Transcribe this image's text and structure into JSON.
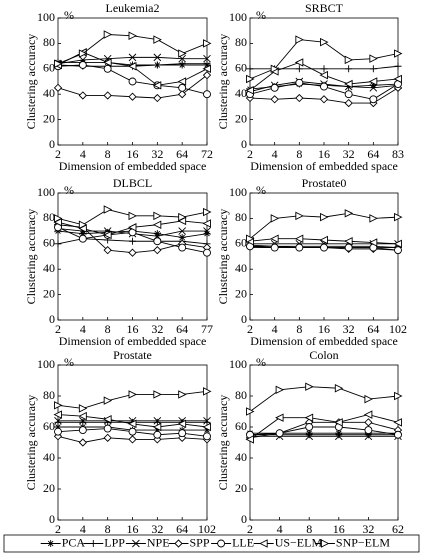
{
  "chart_data": [
    {
      "type": "line",
      "title": "Leukemia2",
      "y_unit": "%",
      "y_label": "Clustering accuracy",
      "x_label": "Dimension of embedded space",
      "categories": [
        2,
        4,
        8,
        16,
        32,
        64,
        72
      ],
      "ylim": [
        0,
        100
      ],
      "yticks": [
        0,
        20,
        40,
        60,
        80,
        100
      ],
      "series": [
        {
          "name": "PCA",
          "marker": "asterisk",
          "color": "#000",
          "values": [
            65,
            65,
            65,
            63,
            63,
            63,
            63
          ]
        },
        {
          "name": "LPP",
          "marker": "plus",
          "color": "#000",
          "values": [
            63,
            62,
            62,
            62,
            63,
            64,
            64
          ]
        },
        {
          "name": "NPE",
          "marker": "x",
          "color": "#000",
          "values": [
            64,
            67,
            68,
            69,
            69,
            68,
            68
          ]
        },
        {
          "name": "SPP",
          "marker": "diamond",
          "color": "#000",
          "values": [
            45,
            39,
            39,
            38,
            37,
            40,
            55
          ]
        },
        {
          "name": "LLE",
          "marker": "circle",
          "color": "#000",
          "values": [
            62,
            63,
            60,
            50,
            47,
            45,
            40
          ]
        },
        {
          "name": "US−ELM",
          "marker": "triangle-left",
          "color": "#000",
          "values": [
            63,
            73,
            65,
            62,
            47,
            50,
            60
          ]
        },
        {
          "name": "SNP−ELM",
          "marker": "triangle-right",
          "color": "#000",
          "values": [
            64,
            72,
            87,
            86,
            83,
            72,
            80
          ]
        }
      ]
    },
    {
      "type": "line",
      "title": "SRBCT",
      "y_unit": "%",
      "y_label": "Clustering accuracy",
      "x_label": "Dimension of embedded space",
      "categories": [
        2,
        4,
        8,
        16,
        32,
        64,
        83
      ],
      "ylim": [
        0,
        100
      ],
      "yticks": [
        0,
        20,
        40,
        60,
        80,
        100
      ],
      "series": [
        {
          "name": "PCA",
          "marker": "asterisk",
          "color": "#000",
          "values": [
            44,
            46,
            48,
            47,
            46,
            47,
            48
          ]
        },
        {
          "name": "LPP",
          "marker": "plus",
          "color": "#000",
          "values": [
            60,
            60,
            60,
            60,
            60,
            60,
            62
          ]
        },
        {
          "name": "NPE",
          "marker": "x",
          "color": "#000",
          "values": [
            42,
            47,
            50,
            48,
            46,
            45,
            47
          ]
        },
        {
          "name": "SPP",
          "marker": "diamond",
          "color": "#000",
          "values": [
            37,
            36,
            37,
            36,
            33,
            33,
            45
          ]
        },
        {
          "name": "LLE",
          "marker": "circle",
          "color": "#000",
          "values": [
            40,
            45,
            49,
            46,
            40,
            36,
            48
          ]
        },
        {
          "name": "US−ELM",
          "marker": "triangle-left",
          "color": "#000",
          "values": [
            43,
            58,
            65,
            55,
            48,
            50,
            52
          ]
        },
        {
          "name": "SNP−ELM",
          "marker": "triangle-right",
          "color": "#000",
          "values": [
            52,
            60,
            83,
            81,
            67,
            68,
            72
          ]
        }
      ]
    },
    {
      "type": "line",
      "title": "DLBCL",
      "y_unit": "%",
      "y_label": "Clustering accuracy",
      "x_label": "Dimension of embedded space",
      "categories": [
        2,
        4,
        8,
        16,
        32,
        64,
        77
      ],
      "ylim": [
        0,
        100
      ],
      "yticks": [
        0,
        20,
        40,
        60,
        80,
        100
      ],
      "series": [
        {
          "name": "PCA",
          "marker": "asterisk",
          "color": "#000",
          "values": [
            70,
            68,
            69,
            70,
            68,
            65,
            68
          ]
        },
        {
          "name": "LPP",
          "marker": "plus",
          "color": "#000",
          "values": [
            60,
            64,
            63,
            62,
            62,
            62,
            60
          ]
        },
        {
          "name": "NPE",
          "marker": "x",
          "color": "#000",
          "values": [
            72,
            70,
            70,
            68,
            66,
            70,
            70
          ]
        },
        {
          "name": "SPP",
          "marker": "diamond",
          "color": "#000",
          "values": [
            75,
            73,
            55,
            53,
            55,
            60,
            57
          ]
        },
        {
          "name": "LLE",
          "marker": "circle",
          "color": "#000",
          "values": [
            73,
            64,
            67,
            69,
            62,
            57,
            53
          ]
        },
        {
          "name": "US−ELM",
          "marker": "triangle-left",
          "color": "#000",
          "values": [
            77,
            72,
            67,
            73,
            75,
            78,
            76
          ]
        },
        {
          "name": "SNP−ELM",
          "marker": "triangle-right",
          "color": "#000",
          "values": [
            80,
            75,
            87,
            82,
            82,
            81,
            85
          ]
        }
      ]
    },
    {
      "type": "line",
      "title": "Prostate0",
      "y_unit": "%",
      "y_label": "Clustering accuracy",
      "x_label": "Dimension of embedded space",
      "categories": [
        2,
        4,
        8,
        16,
        32,
        64,
        102
      ],
      "ylim": [
        0,
        100
      ],
      "yticks": [
        0,
        20,
        40,
        60,
        80,
        100
      ],
      "series": [
        {
          "name": "PCA",
          "marker": "asterisk",
          "color": "#000",
          "values": [
            59,
            58,
            58,
            58,
            58,
            58,
            57
          ]
        },
        {
          "name": "LPP",
          "marker": "plus",
          "color": "#000",
          "values": [
            57,
            57,
            57,
            57,
            57,
            57,
            57
          ]
        },
        {
          "name": "NPE",
          "marker": "x",
          "color": "#000",
          "values": [
            60,
            60,
            60,
            60,
            60,
            60,
            60
          ]
        },
        {
          "name": "SPP",
          "marker": "diamond",
          "color": "#000",
          "values": [
            58,
            58,
            57,
            57,
            56,
            56,
            55
          ]
        },
        {
          "name": "LLE",
          "marker": "circle",
          "color": "#000",
          "values": [
            58,
            57,
            57,
            57,
            57,
            57,
            55
          ]
        },
        {
          "name": "US−ELM",
          "marker": "triangle-left",
          "color": "#000",
          "values": [
            62,
            64,
            64,
            63,
            62,
            61,
            60
          ]
        },
        {
          "name": "SNP−ELM",
          "marker": "triangle-right",
          "color": "#000",
          "values": [
            64,
            80,
            82,
            81,
            84,
            80,
            81
          ]
        }
      ]
    },
    {
      "type": "line",
      "title": "Prostate",
      "y_unit": "%",
      "y_label": "Clustering accuracy",
      "categories": [
        2,
        4,
        8,
        16,
        32,
        64,
        102
      ],
      "ylim": [
        0,
        100
      ],
      "yticks": [
        0,
        20,
        40,
        60,
        80,
        100
      ],
      "series": [
        {
          "name": "PCA",
          "marker": "asterisk",
          "color": "#000",
          "values": [
            60,
            60,
            60,
            58,
            58,
            58,
            58
          ]
        },
        {
          "name": "LPP",
          "marker": "plus",
          "color": "#000",
          "values": [
            63,
            63,
            63,
            63,
            63,
            63,
            63
          ]
        },
        {
          "name": "NPE",
          "marker": "x",
          "color": "#000",
          "values": [
            64,
            64,
            64,
            64,
            64,
            64,
            64
          ]
        },
        {
          "name": "SPP",
          "marker": "diamond",
          "color": "#000",
          "values": [
            54,
            50,
            53,
            52,
            52,
            53,
            52
          ]
        },
        {
          "name": "LLE",
          "marker": "circle",
          "color": "#000",
          "values": [
            57,
            58,
            59,
            57,
            55,
            56,
            54
          ]
        },
        {
          "name": "US−ELM",
          "marker": "triangle-left",
          "color": "#000",
          "values": [
            68,
            67,
            65,
            62,
            60,
            62,
            60
          ]
        },
        {
          "name": "SNP−ELM",
          "marker": "triangle-right",
          "color": "#000",
          "values": [
            74,
            72,
            77,
            81,
            81,
            81,
            83
          ]
        }
      ]
    },
    {
      "type": "line",
      "title": "Colon",
      "y_unit": "%",
      "y_label": "Clustering accuracy",
      "categories": [
        2,
        4,
        8,
        16,
        32,
        62
      ],
      "ylim": [
        0,
        100
      ],
      "yticks": [
        0,
        20,
        40,
        60,
        80,
        100
      ],
      "series": [
        {
          "name": "PCA",
          "marker": "asterisk",
          "color": "#000",
          "values": [
            56,
            56,
            56,
            56,
            56,
            56
          ]
        },
        {
          "name": "LPP",
          "marker": "plus",
          "color": "#000",
          "values": [
            55,
            55,
            55,
            55,
            55,
            55
          ]
        },
        {
          "name": "NPE",
          "marker": "x",
          "color": "#000",
          "values": [
            54,
            54,
            54,
            54,
            54,
            54
          ]
        },
        {
          "name": "SPP",
          "marker": "diamond",
          "color": "#000",
          "values": [
            53,
            56,
            63,
            63,
            63,
            58
          ]
        },
        {
          "name": "LLE",
          "marker": "circle",
          "color": "#000",
          "values": [
            55,
            56,
            60,
            60,
            58,
            55
          ]
        },
        {
          "name": "US−ELM",
          "marker": "triangle-left",
          "color": "#000",
          "values": [
            52,
            66,
            66,
            63,
            68,
            63
          ]
        },
        {
          "name": "SNP−ELM",
          "marker": "triangle-right",
          "color": "#000",
          "values": [
            70,
            84,
            86,
            85,
            78,
            80
          ]
        }
      ]
    }
  ]
}
